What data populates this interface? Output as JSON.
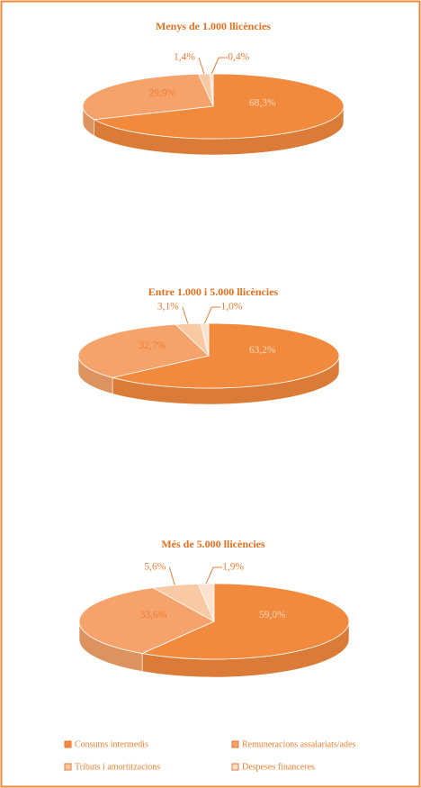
{
  "chart_data": [
    {
      "type": "pie",
      "title": "Menys de 1.000 llicències",
      "values": [
        68.3,
        29.9,
        1.4,
        0.4
      ],
      "value_labels": [
        "68,3%",
        "29,9%",
        "1,4%",
        "0,4%"
      ]
    },
    {
      "type": "pie",
      "title": "Entre 1.000 i 5.000 llicències",
      "values": [
        63.2,
        32.7,
        3.1,
        1.0
      ],
      "value_labels": [
        "63,2%",
        "32,7%",
        "3,1%",
        "1,0%"
      ]
    },
    {
      "type": "pie",
      "title": "Més de 5.000 llicències",
      "values": [
        59.0,
        33.6,
        5.6,
        1.9
      ],
      "value_labels": [
        "59,0%",
        "33,6%",
        "5,6%",
        "1,9%"
      ]
    }
  ],
  "legend": {
    "categories": [
      "Consums intermedis",
      "Remuneracions assalariats/ades",
      "Tributs i amortitzacions",
      "Despeses financeres"
    ],
    "colors": [
      "#f28a3e",
      "#f5a36a",
      "#f9c9a4",
      "#fde3cf"
    ]
  }
}
